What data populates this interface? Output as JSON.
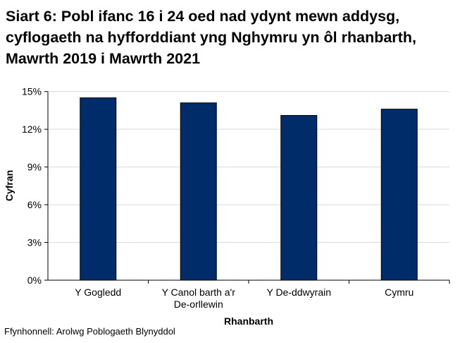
{
  "chart_data": {
    "type": "bar",
    "title": "Siart 6: Pobl ifanc 16 i 24 oed nad ydynt mewn addysg, cyflogaeth na hyfforddiant yng Nghymru yn ôl rhanbarth, Mawrth 2019 i Mawrth 2021",
    "categories": [
      [
        "Y Gogledd"
      ],
      [
        "Y Canol barth a'r",
        "De-orllewin"
      ],
      [
        "Y De-ddwyrain"
      ],
      [
        "Cymru"
      ]
    ],
    "values": [
      14.5,
      14.1,
      13.1,
      13.6
    ],
    "xlabel": "Rhanbarth",
    "ylabel": "Cyfran",
    "ylim": [
      0,
      15
    ],
    "yticks": [
      "0%",
      "3%",
      "6%",
      "9%",
      "12%",
      "15%"
    ],
    "grid": true,
    "bar_color": "#002D6A",
    "source": "Ffynhonnell: Arolwg Poblogaeth Blynyddol"
  }
}
